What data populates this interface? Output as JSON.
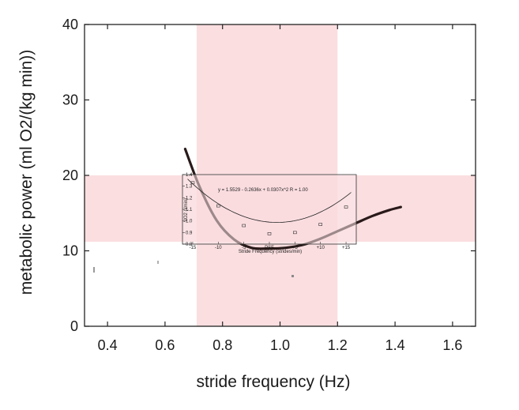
{
  "chart_data": [
    {
      "type": "line",
      "xlabel": "stride frequency (Hz)",
      "ylabel": "metabolic power (ml O2/(kg min))",
      "xlim": [
        0.32,
        1.68
      ],
      "ylim": [
        0,
        40
      ],
      "x_ticks": [
        "0.4",
        "0.6",
        "0.8",
        "1.0",
        "1.2",
        "1.4",
        "1.6"
      ],
      "x_tick_values": [
        0.4,
        0.6,
        0.8,
        1.0,
        1.2,
        1.4,
        1.6
      ],
      "y_ticks": [
        "0",
        "10",
        "20",
        "30",
        "40"
      ],
      "y_tick_values": [
        0,
        10,
        20,
        30,
        40
      ],
      "highlight_bands": [
        {
          "axis": "x",
          "from": 0.71,
          "to": 1.2,
          "color": "#f8c8cc"
        },
        {
          "axis": "y",
          "from": 11.2,
          "to": 20,
          "color": "#f8c8cc"
        }
      ],
      "series": [
        {
          "name": "metabolic power",
          "color": "#2a1a1a",
          "x": [
            0.67,
            0.72,
            0.78,
            0.84,
            0.9,
            0.96,
            1.02,
            1.08,
            1.14,
            1.2,
            1.26,
            1.32,
            1.38,
            1.42
          ],
          "y": [
            23.5,
            18.5,
            14.0,
            11.5,
            10.4,
            10.3,
            10.4,
            10.8,
            11.6,
            12.6,
            13.6,
            14.6,
            15.4,
            15.8
          ]
        }
      ]
    },
    {
      "type": "scatter",
      "title": "y = 1.5529 - 0.2636x + 0.0307x^2   R = 1.00",
      "xlabel": "Stride Frequency (strides/min)",
      "ylabel": "VO2 (l/min)",
      "xlim": [
        -17,
        17
      ],
      "ylim": [
        0.8,
        1.4
      ],
      "x_ticks": [
        "-15",
        "-10",
        "-5",
        "PSF",
        "+5",
        "+10",
        "+15"
      ],
      "x_tick_values": [
        -15,
        -10,
        -5,
        0,
        5,
        10,
        15
      ],
      "y_ticks": [
        "0.8",
        "0.9",
        "1.0",
        "1.1",
        "1.2",
        "1.3",
        "1.4"
      ],
      "y_tick_values": [
        0.8,
        0.9,
        1.0,
        1.1,
        1.2,
        1.3,
        1.4
      ],
      "points": [
        {
          "x": -15,
          "y": 1.33
        },
        {
          "x": -10,
          "y": 1.13
        },
        {
          "x": -5,
          "y": 0.96
        },
        {
          "x": 0,
          "y": 0.89
        },
        {
          "x": 5,
          "y": 0.9
        },
        {
          "x": 10,
          "y": 0.97
        },
        {
          "x": 15,
          "y": 1.12
        }
      ],
      "fit": {
        "a": 0.0307,
        "b": -0.2636,
        "c": 1.5529
      }
    }
  ]
}
